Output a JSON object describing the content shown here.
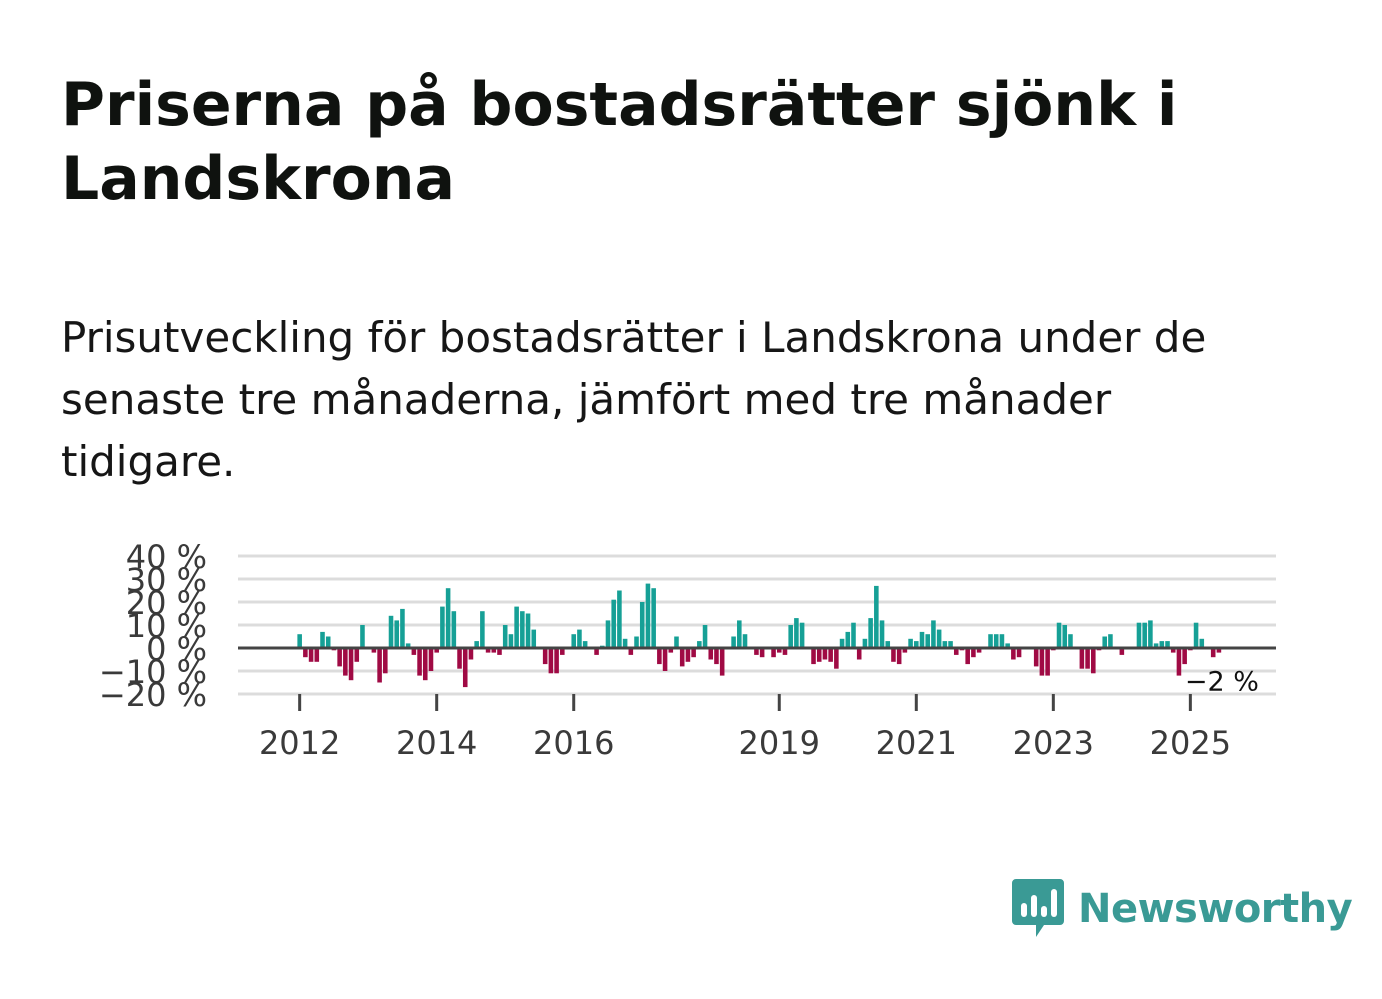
{
  "title": "Priserna på bostadsrätter sjönk i Landskrona",
  "subtitle": "Prisutveckling för bostadsrätter i Landskrona under de senaste tre månaderna, jämfört med tre månader tidigare.",
  "brand": {
    "name": "Newsworthy",
    "color": "#3a9a95"
  },
  "colors": {
    "positive": "#16a096",
    "negative": "#a00a44",
    "grid": "#dcdcdc",
    "zero": "#444444"
  },
  "chart_data": {
    "type": "bar",
    "title": "",
    "xlabel": "",
    "ylabel": "",
    "ylim": [
      -20,
      40
    ],
    "xlim": [
      2011.1,
      2026.25
    ],
    "yticks": [
      40,
      30,
      20,
      10,
      0,
      -10,
      -20
    ],
    "ytick_labels": [
      "40 %",
      "30 %",
      "20 %",
      "10 %",
      "0 %",
      "−10 %",
      "−20 %"
    ],
    "xticks": [
      2012,
      2014,
      2016,
      2019,
      2021,
      2023,
      2025
    ],
    "xtick_labels": [
      "2012",
      "2014",
      "2016",
      "2019",
      "2021",
      "2023",
      "2025"
    ],
    "end_label": "−2 %",
    "start": {
      "year": 2012,
      "month": 1
    },
    "values": [
      6,
      -4,
      -6,
      -6,
      7,
      5,
      -1,
      -8,
      -12,
      -14,
      -6,
      10,
      0,
      -2,
      -15,
      -11,
      14,
      12,
      17,
      2,
      -3,
      -12,
      -14,
      -10,
      -2,
      18,
      26,
      16,
      -9,
      -17,
      -5,
      3,
      16,
      -2,
      -2,
      -3,
      10,
      6,
      18,
      16,
      15,
      8,
      0,
      -7,
      -11,
      -11,
      -3,
      0,
      6,
      8,
      3,
      0,
      -3,
      1,
      12,
      21,
      25,
      4,
      -3,
      5,
      20,
      28,
      26,
      -7,
      -10,
      -2,
      5,
      -8,
      -6,
      -4,
      3,
      10,
      -5,
      -7,
      -12,
      0,
      5,
      12,
      6,
      0,
      -3,
      -4,
      0,
      -4,
      -2,
      -3,
      10,
      13,
      11,
      0,
      -7,
      -6,
      -5,
      -6,
      -9,
      4,
      7,
      11,
      -5,
      4,
      13,
      27,
      12,
      3,
      -6,
      -7,
      -2,
      4,
      3,
      7,
      6,
      12,
      8,
      3,
      3,
      -3,
      -1,
      -7,
      -4,
      -2,
      0,
      6,
      6,
      6,
      2,
      -5,
      -4,
      0,
      0,
      -8,
      -12,
      -12,
      -1,
      11,
      10,
      6,
      0,
      -9,
      -9,
      -11,
      -1,
      5,
      6,
      0,
      -3,
      0,
      0,
      11,
      11,
      12,
      2,
      3,
      3,
      -2,
      -12,
      -7,
      -1,
      11,
      4,
      0,
      -4,
      -2
    ]
  }
}
